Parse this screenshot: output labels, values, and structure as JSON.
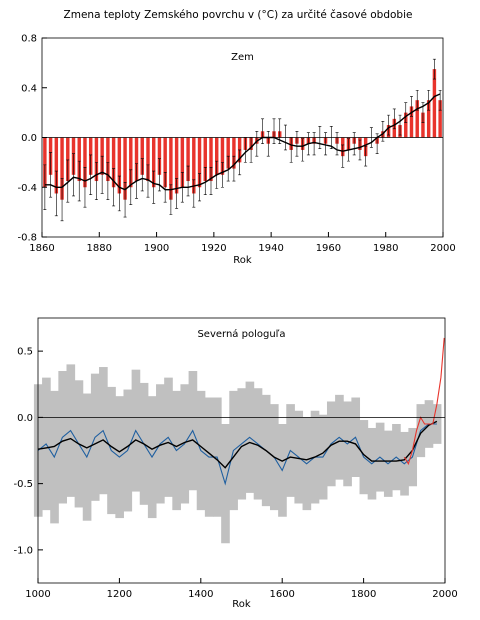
{
  "chart_data": [
    {
      "type": "bar",
      "title": "Zmena teploty Zemského povrchu v (°C) za určité časové obdobie",
      "annotation": "Zem",
      "xlabel": "Rok",
      "xlim": [
        1860,
        2000
      ],
      "xticks": [
        1860,
        1880,
        1900,
        1920,
        1940,
        1960,
        1980,
        2000
      ],
      "ylim": [
        -0.8,
        0.8
      ],
      "yticks": [
        -0.8,
        -0.4,
        {
          "value": 0,
          "label": "0.0"
        },
        0.4,
        0.8
      ],
      "x": [
        1861,
        1863,
        1865,
        1867,
        1869,
        1871,
        1873,
        1875,
        1877,
        1879,
        1881,
        1883,
        1885,
        1887,
        1889,
        1891,
        1893,
        1895,
        1897,
        1899,
        1901,
        1903,
        1905,
        1907,
        1909,
        1911,
        1913,
        1915,
        1917,
        1919,
        1921,
        1923,
        1925,
        1927,
        1929,
        1931,
        1933,
        1935,
        1937,
        1939,
        1941,
        1943,
        1945,
        1947,
        1949,
        1951,
        1953,
        1955,
        1957,
        1959,
        1961,
        1963,
        1965,
        1967,
        1969,
        1971,
        1973,
        1975,
        1977,
        1979,
        1981,
        1983,
        1985,
        1987,
        1989,
        1991,
        1993,
        1995,
        1997,
        1999
      ],
      "series": [
        {
          "type": "bar",
          "color": "#e8342c",
          "values": [
            -0.4,
            -0.3,
            -0.45,
            -0.5,
            -0.35,
            -0.3,
            -0.35,
            -0.4,
            -0.3,
            -0.35,
            -0.3,
            -0.35,
            -0.4,
            -0.45,
            -0.5,
            -0.4,
            -0.35,
            -0.3,
            -0.35,
            -0.4,
            -0.3,
            -0.4,
            -0.5,
            -0.45,
            -0.4,
            -0.35,
            -0.45,
            -0.4,
            -0.35,
            -0.35,
            -0.3,
            -0.3,
            -0.25,
            -0.25,
            -0.2,
            -0.1,
            -0.1,
            -0.05,
            0.05,
            -0.05,
            0.05,
            0.05,
            0.0,
            -0.1,
            -0.05,
            -0.1,
            -0.05,
            -0.05,
            0.0,
            -0.05,
            0.0,
            -0.05,
            -0.15,
            -0.1,
            -0.05,
            -0.1,
            -0.15,
            0.0,
            -0.05,
            0.05,
            0.1,
            0.15,
            0.1,
            0.2,
            0.25,
            0.3,
            0.2,
            0.3,
            0.55,
            0.3
          ],
          "errors": [
            0.18,
            0.18,
            0.18,
            0.17,
            0.17,
            0.17,
            0.16,
            0.16,
            0.16,
            0.15,
            0.15,
            0.15,
            0.15,
            0.14,
            0.14,
            0.14,
            0.14,
            0.13,
            0.13,
            0.13,
            0.13,
            0.12,
            0.12,
            0.12,
            0.12,
            0.12,
            0.11,
            0.11,
            0.11,
            0.11,
            0.11,
            0.1,
            0.1,
            0.1,
            0.1,
            0.1,
            0.1,
            0.1,
            0.1,
            0.1,
            0.1,
            0.1,
            0.1,
            0.1,
            0.1,
            0.09,
            0.09,
            0.09,
            0.09,
            0.09,
            0.09,
            0.09,
            0.09,
            0.09,
            0.09,
            0.08,
            0.08,
            0.08,
            0.08,
            0.08,
            0.08,
            0.08,
            0.08,
            0.08,
            0.08,
            0.08,
            0.08,
            0.08,
            0.08,
            0.08
          ]
        },
        {
          "type": "line",
          "color": "#000000",
          "values": [
            -0.38,
            -0.38,
            -0.4,
            -0.4,
            -0.36,
            -0.32,
            -0.33,
            -0.35,
            -0.33,
            -0.3,
            -0.28,
            -0.3,
            -0.35,
            -0.4,
            -0.42,
            -0.38,
            -0.35,
            -0.33,
            -0.34,
            -0.37,
            -0.38,
            -0.42,
            -0.42,
            -0.41,
            -0.4,
            -0.4,
            -0.39,
            -0.38,
            -0.36,
            -0.33,
            -0.3,
            -0.28,
            -0.26,
            -0.22,
            -0.17,
            -0.12,
            -0.08,
            -0.03,
            0.0,
            0.0,
            0.0,
            -0.02,
            -0.04,
            -0.06,
            -0.07,
            -0.07,
            -0.05,
            -0.04,
            -0.05,
            -0.06,
            -0.07,
            -0.1,
            -0.11,
            -0.1,
            -0.09,
            -0.08,
            -0.06,
            -0.04,
            0.0,
            0.03,
            0.08,
            0.1,
            0.13,
            0.17,
            0.2,
            0.23,
            0.25,
            0.28,
            0.33,
            0.35
          ]
        }
      ]
    },
    {
      "type": "line",
      "annotation": "Severná pologuľa",
      "xlabel": "Rok",
      "xlim": [
        1000,
        2000
      ],
      "xticks": [
        1000,
        1200,
        1400,
        1600,
        1800,
        2000
      ],
      "ylim": [
        -1.25,
        0.75
      ],
      "yticks": [
        {
          "value": -1,
          "label": "-1.0"
        },
        -0.5,
        {
          "value": 0,
          "label": "0.0"
        },
        0.5
      ],
      "x": [
        1000,
        1020,
        1040,
        1060,
        1080,
        1100,
        1120,
        1140,
        1160,
        1180,
        1200,
        1220,
        1240,
        1260,
        1280,
        1300,
        1320,
        1340,
        1360,
        1380,
        1400,
        1420,
        1440,
        1460,
        1480,
        1500,
        1520,
        1540,
        1560,
        1580,
        1600,
        1620,
        1640,
        1660,
        1680,
        1700,
        1720,
        1740,
        1760,
        1780,
        1800,
        1820,
        1840,
        1860,
        1880,
        1900,
        1920,
        1940,
        1960,
        1980
      ],
      "series": [
        {
          "type": "band",
          "color": "#c0c0c0",
          "values": [
            -0.25,
            -0.2,
            -0.3,
            -0.15,
            -0.1,
            -0.2,
            -0.3,
            -0.15,
            -0.1,
            -0.25,
            -0.3,
            -0.25,
            -0.1,
            -0.2,
            -0.3,
            -0.2,
            -0.15,
            -0.25,
            -0.2,
            -0.1,
            -0.25,
            -0.3,
            -0.3,
            -0.5,
            -0.25,
            -0.2,
            -0.15,
            -0.2,
            -0.25,
            -0.3,
            -0.4,
            -0.25,
            -0.3,
            -0.35,
            -0.3,
            -0.3,
            -0.2,
            -0.15,
            -0.2,
            -0.15,
            -0.3,
            -0.35,
            -0.3,
            -0.35,
            -0.3,
            -0.35,
            -0.3,
            -0.1,
            -0.05,
            -0.05
          ],
          "uncertainty": [
            0.5,
            0.5,
            0.5,
            0.5,
            0.5,
            0.48,
            0.48,
            0.48,
            0.48,
            0.48,
            0.46,
            0.46,
            0.46,
            0.46,
            0.46,
            0.45,
            0.45,
            0.45,
            0.45,
            0.45,
            0.45,
            0.45,
            0.45,
            0.45,
            0.45,
            0.42,
            0.42,
            0.42,
            0.42,
            0.4,
            0.35,
            0.35,
            0.35,
            0.35,
            0.35,
            0.32,
            0.32,
            0.32,
            0.32,
            0.3,
            0.28,
            0.27,
            0.26,
            0.25,
            0.25,
            0.24,
            0.22,
            0.2,
            0.18,
            0.15
          ]
        },
        {
          "type": "line",
          "color": "#1f5fa0",
          "values": [
            -0.25,
            -0.2,
            -0.3,
            -0.15,
            -0.1,
            -0.2,
            -0.3,
            -0.15,
            -0.1,
            -0.25,
            -0.3,
            -0.25,
            -0.1,
            -0.2,
            -0.3,
            -0.2,
            -0.15,
            -0.25,
            -0.2,
            -0.1,
            -0.25,
            -0.3,
            -0.3,
            -0.5,
            -0.25,
            -0.2,
            -0.15,
            -0.2,
            -0.25,
            -0.3,
            -0.4,
            -0.25,
            -0.3,
            -0.35,
            -0.3,
            -0.3,
            -0.2,
            -0.15,
            -0.2,
            -0.15,
            -0.3,
            -0.35,
            -0.3,
            -0.35,
            -0.3,
            -0.35,
            -0.3,
            -0.1,
            -0.05,
            -0.05
          ]
        },
        {
          "type": "line",
          "color": "#000000",
          "values": [
            -0.24,
            -0.23,
            -0.22,
            -0.18,
            -0.16,
            -0.2,
            -0.23,
            -0.2,
            -0.17,
            -0.22,
            -0.26,
            -0.22,
            -0.17,
            -0.2,
            -0.24,
            -0.21,
            -0.19,
            -0.22,
            -0.19,
            -0.17,
            -0.22,
            -0.27,
            -0.32,
            -0.38,
            -0.3,
            -0.22,
            -0.19,
            -0.21,
            -0.25,
            -0.3,
            -0.33,
            -0.3,
            -0.31,
            -0.32,
            -0.3,
            -0.27,
            -0.21,
            -0.18,
            -0.18,
            -0.2,
            -0.28,
            -0.33,
            -0.33,
            -0.33,
            -0.33,
            -0.32,
            -0.25,
            -0.12,
            -0.06,
            -0.03
          ]
        },
        {
          "type": "line",
          "color": "#e8342c",
          "x": [
            1900,
            1910,
            1920,
            1930,
            1940,
            1950,
            1960,
            1970,
            1980,
            1990,
            1998
          ],
          "values": [
            -0.3,
            -0.35,
            -0.25,
            -0.1,
            0.0,
            -0.05,
            -0.05,
            -0.05,
            0.1,
            0.3,
            0.6
          ]
        }
      ]
    }
  ]
}
